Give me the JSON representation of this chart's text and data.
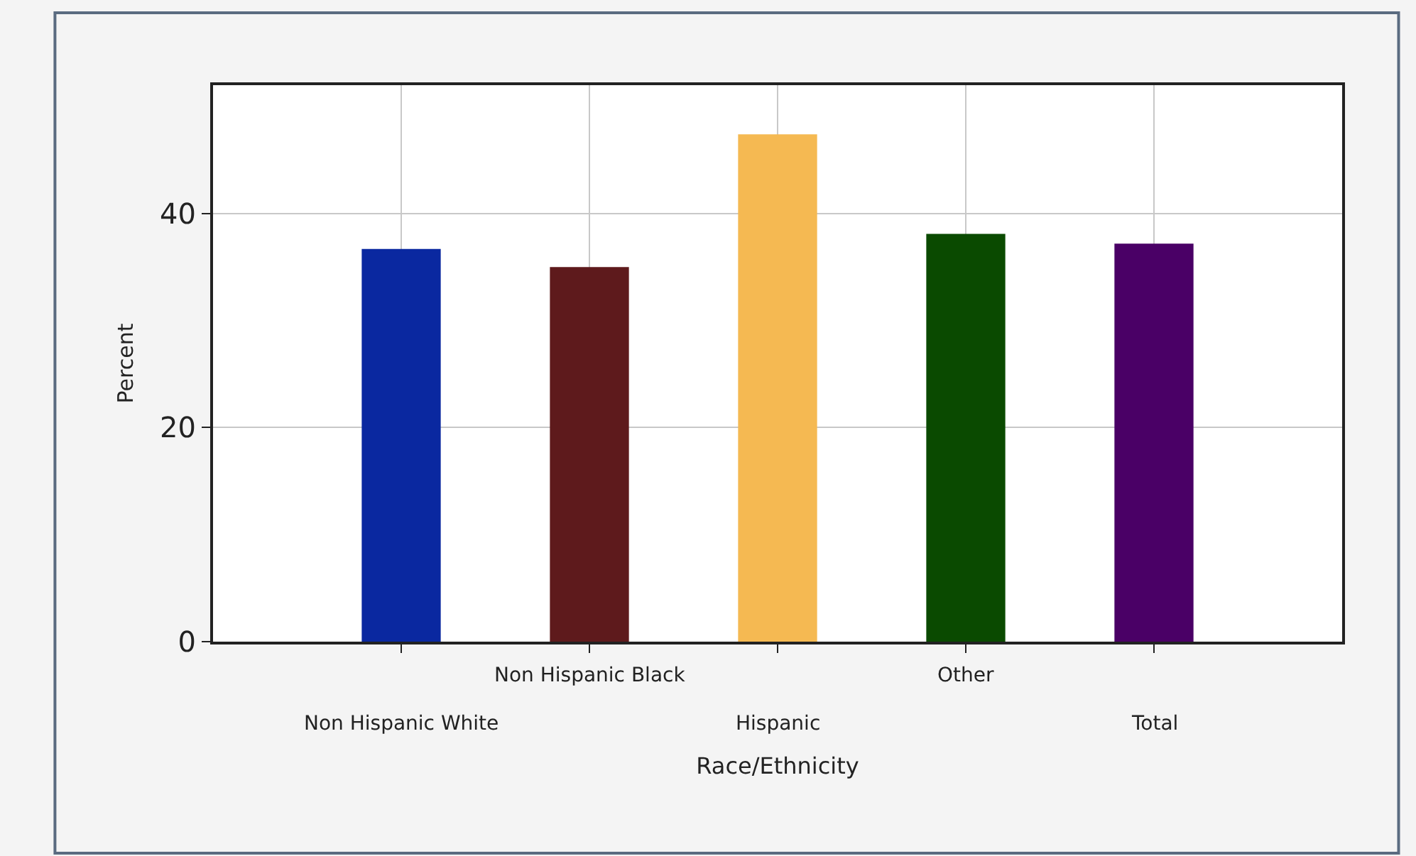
{
  "chart_data": {
    "type": "bar",
    "xlabel": "Race/Ethnicity",
    "ylabel": "Percent",
    "categories": [
      "Non Hispanic White",
      "Non Hispanic Black",
      "Hispanic",
      "Other",
      "Total"
    ],
    "values": [
      36.7,
      35.0,
      47.4,
      38.1,
      37.2
    ],
    "colors": [
      "#0a28a0",
      "#5e1a1c",
      "#f5b952",
      "#0a4a00",
      "#4a0066"
    ],
    "ylim": [
      0,
      52
    ],
    "yticks": [
      0,
      20,
      40
    ],
    "grid": true
  }
}
